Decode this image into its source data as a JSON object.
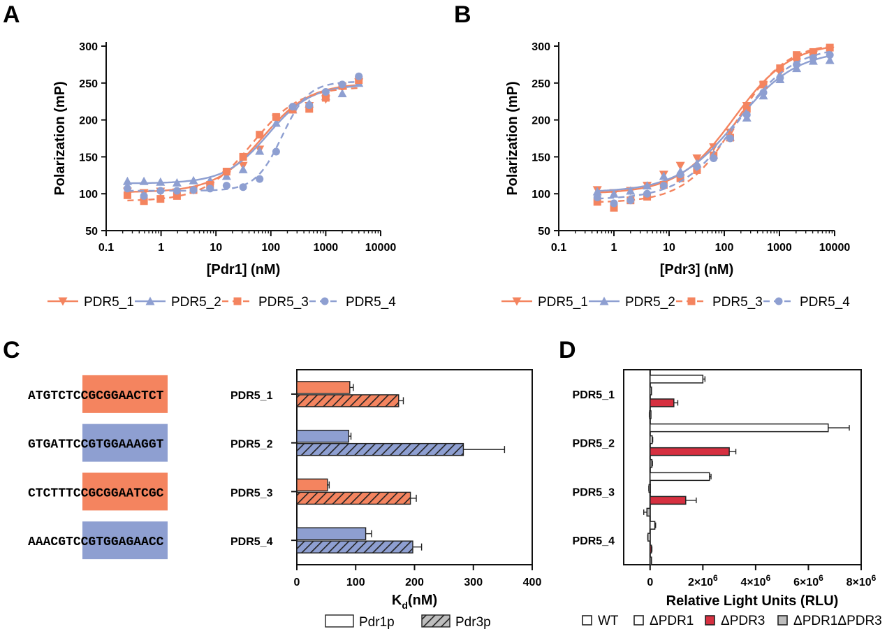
{
  "panels": [
    "A",
    "B",
    "C",
    "D"
  ],
  "colors": {
    "orange": "#f4845f",
    "blue": "#8e9fd1",
    "red": "#d63040",
    "gray": "#bdbdbd",
    "dark": "#1a1a1a"
  },
  "chart_data": [
    {
      "id": "A",
      "type": "scatter",
      "xlabel": "[Pdr1] (nM)",
      "ylabel": "Polarization (mP)",
      "xscale": "log",
      "xlim": [
        0.1,
        10000
      ],
      "ylim": [
        50,
        300
      ],
      "xticks": [
        "0.1",
        "1",
        "10",
        "100",
        "1000",
        "10000"
      ],
      "yticks": [
        "50",
        "100",
        "150",
        "200",
        "250",
        "300"
      ],
      "x": [
        0.244,
        0.488,
        0.977,
        1.95,
        3.9,
        7.8,
        15.6,
        31.25,
        62.5,
        125,
        250,
        500,
        1000,
        2000,
        4000
      ],
      "series": [
        {
          "name": "PDR5_1",
          "color": "orange",
          "marker": "triangle-down",
          "dash": false,
          "values": [
            103,
            101,
            103,
            102,
            105,
            110,
            125,
            138,
            160,
            202,
            214,
            219,
            228,
            244,
            251
          ],
          "fit": {
            "bottom": 102,
            "top": 250,
            "ec50": 70,
            "hill": 1.0
          }
        },
        {
          "name": "PDR5_2",
          "color": "blue",
          "marker": "triangle-up",
          "dash": false,
          "values": [
            117,
            117,
            116,
            115,
            118,
            118,
            124,
            133,
            158,
            196,
            214,
            222,
            232,
            236,
            250
          ],
          "fit": {
            "bottom": 114,
            "top": 248,
            "ec50": 90,
            "hill": 1.1
          }
        },
        {
          "name": "PDR5_3",
          "color": "orange",
          "marker": "square",
          "dash": true,
          "values": [
            98,
            90,
            93,
            97,
            105,
            112,
            130,
            150,
            180,
            204,
            214,
            215,
            230,
            246,
            254
          ],
          "fit": {
            "bottom": 90,
            "top": 245,
            "ec50": 45,
            "hill": 1.0
          }
        },
        {
          "name": "PDR5_4",
          "color": "blue",
          "marker": "circle",
          "dash": true,
          "values": [
            107,
            97,
            104,
            104,
            105,
            107,
            111,
            109,
            120,
            157,
            218,
            220,
            238,
            248,
            259
          ],
          "fit": {
            "bottom": 104,
            "top": 252,
            "ec50": 160,
            "hill": 1.8
          }
        }
      ]
    },
    {
      "id": "B",
      "type": "scatter",
      "xlabel": "[Pdr3] (nM)",
      "ylabel": "Polarization (mP)",
      "xscale": "log",
      "xlim": [
        0.1,
        10000
      ],
      "ylim": [
        50,
        300
      ],
      "xticks": [
        "0.1",
        "1",
        "10",
        "100",
        "1000",
        "10000"
      ],
      "yticks": [
        "50",
        "100",
        "150",
        "200",
        "250",
        "300"
      ],
      "x": [
        0.5,
        1,
        2,
        4,
        8,
        16,
        32,
        64,
        128,
        256,
        512,
        1024,
        2048,
        4096,
        8192
      ],
      "series": [
        {
          "name": "PDR5_1",
          "color": "orange",
          "marker": "triangle-down",
          "dash": false,
          "values": [
            105,
            101,
            104,
            111,
            126,
            138,
            148,
            163,
            183,
            219,
            247,
            264,
            278,
            288,
            294
          ],
          "fit": {
            "bottom": 100,
            "top": 305,
            "ec50": 150,
            "hill": 0.85
          }
        },
        {
          "name": "PDR5_2",
          "color": "blue",
          "marker": "triangle-up",
          "dash": false,
          "values": [
            103,
            100,
            104,
            111,
            124,
            130,
            141,
            153,
            177,
            203,
            233,
            255,
            270,
            280,
            281
          ],
          "fit": {
            "bottom": 102,
            "top": 295,
            "ec50": 170,
            "hill": 0.8
          }
        },
        {
          "name": "PDR5_3",
          "color": "orange",
          "marker": "square",
          "dash": true,
          "values": [
            89,
            81,
            91,
            96,
            112,
            121,
            132,
            152,
            176,
            215,
            248,
            270,
            288,
            292,
            298
          ],
          "fit": {
            "bottom": 88,
            "top": 305,
            "ec50": 160,
            "hill": 0.95
          }
        },
        {
          "name": "PDR5_4",
          "color": "blue",
          "marker": "circle",
          "dash": true,
          "values": [
            95,
            87,
            91,
            100,
            111,
            126,
            137,
            148,
            175,
            207,
            237,
            257,
            275,
            284,
            288
          ],
          "fit": {
            "bottom": 92,
            "top": 300,
            "ec50": 170,
            "hill": 0.85
          }
        }
      ]
    },
    {
      "id": "C",
      "type": "bar",
      "orientation": "horizontal",
      "xlabel_main": "K",
      "xlabel_sub": "d",
      "xlabel_unit": "(nM)",
      "xlim": [
        0,
        400
      ],
      "xticks": [
        "0",
        "100",
        "200",
        "300",
        "400"
      ],
      "categories": [
        "PDR5_1",
        "PDR5_2",
        "PDR5_3",
        "PDR5_4"
      ],
      "category_colors": [
        "orange",
        "blue",
        "orange",
        "blue"
      ],
      "series": [
        {
          "name": "Pdr1p",
          "pattern": "solid",
          "values": [
            90,
            88,
            52,
            117
          ],
          "errors": [
            6,
            4,
            3,
            10
          ]
        },
        {
          "name": "Pdr3p",
          "pattern": "hatched",
          "values": [
            173,
            283,
            193,
            197
          ],
          "errors": [
            8,
            70,
            10,
            15
          ]
        }
      ],
      "sequences": [
        {
          "pre": "ATGTC",
          "core": "TCCGCGGA",
          "post": "ACTCT"
        },
        {
          "pre": "GTGAT",
          "core": "TCCGTGGA",
          "post": "AAGGT"
        },
        {
          "pre": "CTCTT",
          "core": "TCCGCGGA",
          "post": "ATCGC"
        },
        {
          "pre": "AAACG",
          "core": "TCCGTGGA",
          "post": "GAACC"
        }
      ]
    },
    {
      "id": "D",
      "type": "bar",
      "orientation": "horizontal",
      "xlabel": "Relative Light Units (RLU)",
      "xlim": [
        -1000000,
        8000000
      ],
      "xtick_values": [
        0,
        2000000,
        4000000,
        6000000,
        8000000
      ],
      "xticks": [
        "0",
        "2×10",
        "4×10",
        "6×10",
        "8×10"
      ],
      "xtick_exp": "6",
      "categories": [
        "PDR5_1",
        "PDR5_2",
        "PDR5_3",
        "PDR5_4"
      ],
      "series": [
        {
          "name": "WT",
          "color": "white",
          "values": [
            2000000,
            6750000,
            2250000,
            180000
          ],
          "errors": [
            80000,
            800000,
            60000,
            30000
          ]
        },
        {
          "name": "ΔPDR1",
          "color": "white",
          "values": [
            40000,
            80000,
            -40000,
            -80000
          ],
          "errors": [
            10000,
            20000,
            10000,
            10000
          ]
        },
        {
          "name": "ΔPDR3",
          "color": "red",
          "values": [
            900000,
            3000000,
            1350000,
            50000
          ],
          "errors": [
            150000,
            250000,
            400000,
            20000
          ]
        },
        {
          "name": "ΔPDR1ΔPDR3",
          "color": "gray",
          "values": [
            -20000,
            70000,
            -120000,
            40000
          ],
          "errors": [
            10000,
            20000,
            120000,
            10000
          ]
        }
      ]
    }
  ]
}
